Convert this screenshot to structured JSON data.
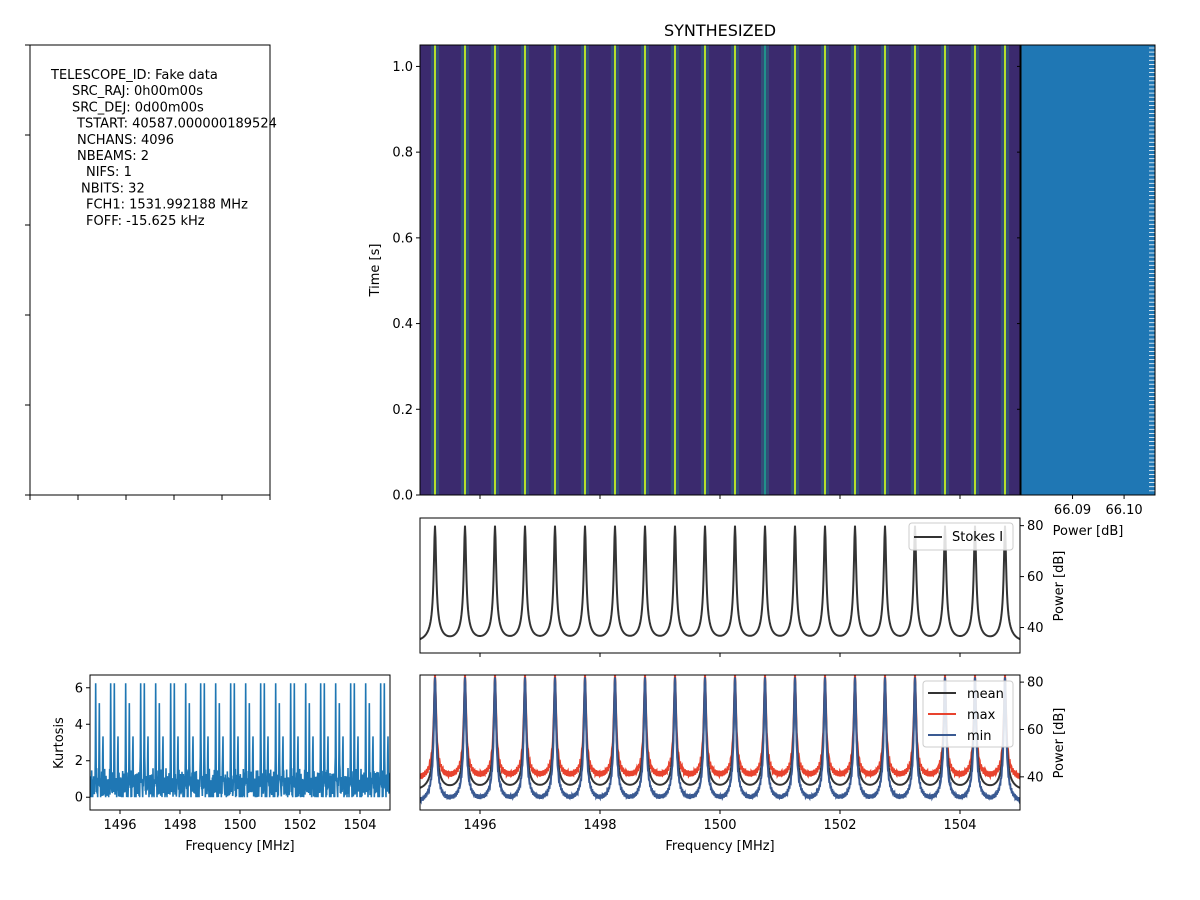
{
  "figure_title": "SYNTHESIZED",
  "header": {
    "lines": [
      "TELESCOPE_ID: Fake data",
      "SRC_RAJ: 0h00m00s",
      "SRC_DEJ: 0d00m00s",
      "TSTART: 40587.000000189524",
      "NCHANS: 4096",
      "NBEAMS: 2",
      "NIFS: 1",
      "NBITS: 32",
      "FCH1: 1531.992188 MHz",
      "FOFF: -15.625 kHz"
    ]
  },
  "colors": {
    "waterfall_background": "#3b2a6e",
    "waterfall_line": "#b5de2b",
    "waterfall_line_glow": "#21918c",
    "timeseries_fill": "#1f77b4",
    "stokes": "#333333",
    "mean": "#333333",
    "max": "#e8432e",
    "min": "#3a5a92",
    "kurtosis": "#1f77b4"
  },
  "chart_data": [
    {
      "id": "waterfall",
      "type": "heatmap",
      "title": "SYNTHESIZED",
      "xlabel": "",
      "ylabel": "Time [s]",
      "xlim": [
        1495.0,
        1505.0
      ],
      "ylim": [
        0.0,
        1.05
      ],
      "yticks": [
        "0.0",
        "0.2",
        "0.4",
        "0.6",
        "0.8",
        "1.0"
      ],
      "line_frequencies_mhz": [
        1495.25,
        1495.75,
        1496.25,
        1496.75,
        1497.25,
        1497.75,
        1498.25,
        1498.75,
        1499.25,
        1499.75,
        1500.25,
        1500.75,
        1501.25,
        1501.75,
        1502.25,
        1502.75,
        1503.25,
        1503.75,
        1504.25,
        1504.75
      ]
    },
    {
      "id": "time_series",
      "type": "bar",
      "xlabel": "Power [dB]",
      "xticks": [
        "66.09",
        "66.10"
      ],
      "xlim": [
        66.08,
        66.106
      ],
      "ylim": [
        0.0,
        1.05
      ],
      "value_db": 66.104
    },
    {
      "id": "spectrum",
      "type": "line",
      "xlim": [
        1495.0,
        1505.0
      ],
      "ylim": [
        30,
        83
      ],
      "ylabel": "Power [dB]",
      "yticks": [
        "40",
        "60",
        "80"
      ],
      "series": [
        {
          "name": "Stokes I",
          "peak_db": 80,
          "floor_db": 32.5
        }
      ],
      "line_frequencies_mhz": [
        1495.25,
        1495.75,
        1496.25,
        1496.75,
        1497.25,
        1497.75,
        1498.25,
        1498.75,
        1499.25,
        1499.75,
        1500.25,
        1500.75,
        1501.25,
        1501.75,
        1502.25,
        1502.75,
        1503.25,
        1503.75,
        1504.25,
        1504.75
      ]
    },
    {
      "id": "mean_max_min",
      "type": "line",
      "xlabel": "Frequency [MHz]",
      "ylabel": "Power [dB]",
      "xlim": [
        1495.0,
        1505.0
      ],
      "ylim": [
        26,
        83
      ],
      "xticks": [
        "1496",
        "1498",
        "1500",
        "1502",
        "1504"
      ],
      "yticks": [
        "40",
        "60",
        "80"
      ],
      "series": [
        {
          "name": "mean",
          "peak_db": 82,
          "floor_db": 32.5
        },
        {
          "name": "max",
          "peak_db": 83,
          "floor_db": 37.5
        },
        {
          "name": "min",
          "peak_db": 82,
          "floor_db": 27
        }
      ],
      "line_frequencies_mhz": [
        1495.25,
        1495.75,
        1496.25,
        1496.75,
        1497.25,
        1497.75,
        1498.25,
        1498.75,
        1499.25,
        1499.75,
        1500.25,
        1500.75,
        1501.25,
        1501.75,
        1502.25,
        1502.75,
        1503.25,
        1503.75,
        1504.25,
        1504.75
      ]
    },
    {
      "id": "kurtosis",
      "type": "line",
      "xlabel": "Frequency [MHz]",
      "ylabel": "Kurtosis",
      "xlim": [
        1495.0,
        1505.0
      ],
      "ylim": [
        -0.7,
        6.7
      ],
      "xticks": [
        "1496",
        "1498",
        "1500",
        "1502",
        "1504"
      ],
      "yticks": [
        "0",
        "2",
        "4",
        "6"
      ],
      "series": [
        {
          "name": "Kurtosis",
          "high_peak": 6.3,
          "mid_peak": 5.2,
          "baseline": 0.6,
          "noise_low": -0.5
        }
      ],
      "line_frequencies_mhz": [
        1495.25,
        1495.75,
        1496.25,
        1496.75,
        1497.25,
        1497.75,
        1498.25,
        1498.75,
        1499.25,
        1499.75,
        1500.25,
        1500.75,
        1501.25,
        1501.75,
        1502.25,
        1502.75,
        1503.25,
        1503.75,
        1504.25,
        1504.75
      ]
    }
  ]
}
